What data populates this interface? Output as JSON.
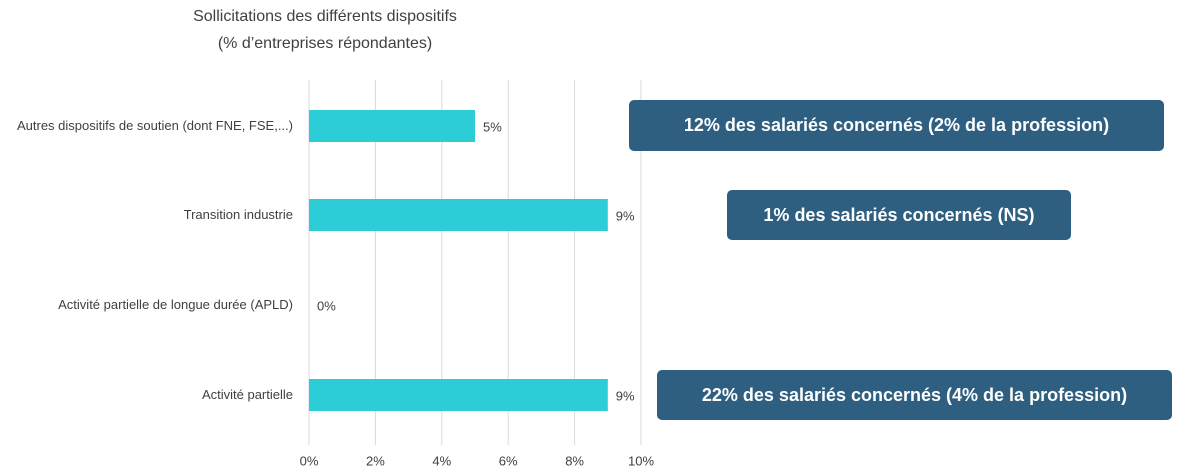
{
  "chart_data": {
    "type": "bar",
    "orientation": "horizontal",
    "title": "Sollicitations des différents dispositifs",
    "subtitle": "(% d’entreprises répondantes)",
    "categories": [
      "Autres dispositifs de soutien (dont FNE, FSE,...)",
      "Transition industrie",
      "Activité partielle de longue durée (APLD)",
      "Activité partielle"
    ],
    "values": [
      5,
      9,
      0,
      9
    ],
    "value_labels": [
      "5%",
      "9%",
      "0%",
      "9%"
    ],
    "color": "#2ccdd6",
    "xlim": [
      0,
      10
    ],
    "xticks": [
      {
        "value": 0,
        "label": "0%"
      },
      {
        "value": 2,
        "label": "2%"
      },
      {
        "value": 4,
        "label": "4%"
      },
      {
        "value": 6,
        "label": "6%"
      },
      {
        "value": 8,
        "label": "8%"
      },
      {
        "value": 10,
        "label": "10%"
      }
    ],
    "grid": true,
    "annotations": [
      "12% des salariés concernés (2% de la profession)",
      "1% des salariés concernés (NS)",
      "22% des salariés concernés (4% de la profession)"
    ]
  }
}
